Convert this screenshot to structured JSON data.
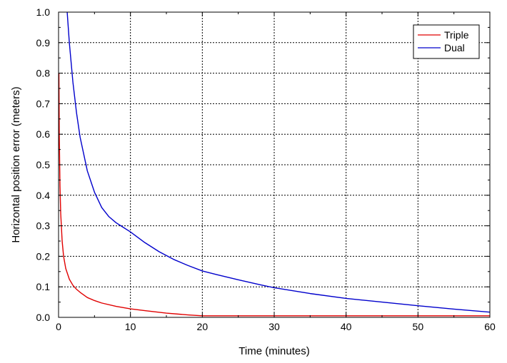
{
  "chart_data": {
    "type": "line",
    "title": "",
    "xlabel": "Time (minutes)",
    "ylabel": "Horizontal position error (meters)",
    "xlim": [
      0,
      60
    ],
    "ylim": [
      0,
      1.0
    ],
    "xticks": [
      0,
      10,
      20,
      30,
      40,
      50,
      60
    ],
    "xtick_labels": [
      "0",
      "10",
      "20",
      "30",
      "40",
      "50",
      "60"
    ],
    "yticks": [
      0,
      0.1,
      0.2,
      0.3,
      0.4,
      0.5,
      0.6,
      0.7,
      0.8,
      0.9,
      1.0
    ],
    "ytick_labels": [
      "0.0",
      "0.1",
      "0.2",
      "0.3",
      "0.4",
      "0.5",
      "0.6",
      "0.7",
      "0.8",
      "0.9",
      "1.0"
    ],
    "grid": true,
    "legend_position": "top-right",
    "series": [
      {
        "name": "Triple",
        "color": "#e00000",
        "x": [
          0.05,
          0.1,
          0.2,
          0.3,
          0.5,
          0.7,
          1.0,
          1.5,
          2,
          2.5,
          3,
          4,
          5,
          6,
          8,
          10,
          12,
          15,
          18,
          20,
          25,
          30,
          40,
          50,
          60
        ],
        "y": [
          0.8,
          0.6,
          0.43,
          0.34,
          0.25,
          0.2,
          0.16,
          0.125,
          0.105,
          0.092,
          0.082,
          0.065,
          0.055,
          0.047,
          0.036,
          0.028,
          0.022,
          0.014,
          0.008,
          0.005,
          0.005,
          0.005,
          0.005,
          0.005,
          0.005
        ]
      },
      {
        "name": "Dual",
        "color": "#0000cc",
        "x": [
          1.2,
          1.5,
          2,
          2.5,
          3,
          4,
          5,
          6,
          7,
          8,
          9,
          10,
          12,
          14,
          16,
          18,
          20,
          22,
          25,
          28,
          30,
          35,
          40,
          45,
          50,
          55,
          60
        ],
        "y": [
          1.0,
          0.9,
          0.77,
          0.67,
          0.59,
          0.48,
          0.41,
          0.36,
          0.33,
          0.31,
          0.295,
          0.28,
          0.245,
          0.215,
          0.19,
          0.17,
          0.152,
          0.14,
          0.123,
          0.107,
          0.097,
          0.078,
          0.062,
          0.05,
          0.038,
          0.027,
          0.017
        ]
      }
    ]
  }
}
